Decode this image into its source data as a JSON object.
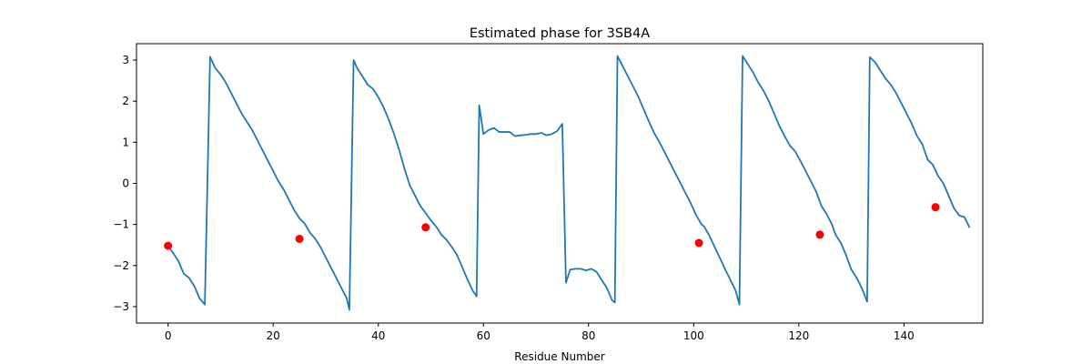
{
  "chart_data": {
    "type": "line",
    "title": "Estimated phase for 3SB4A",
    "xlabel": "Residue Number",
    "ylabel": "",
    "xlim": [
      -6,
      155
    ],
    "ylim": [
      -3.4,
      3.4
    ],
    "xticks": [
      0,
      20,
      40,
      60,
      80,
      100,
      120,
      140
    ],
    "yticks": [
      -3,
      -2,
      -1,
      0,
      1,
      2,
      3
    ],
    "grid": false,
    "legend": "none",
    "colors": {
      "line": "#1f77b4",
      "markers": "#ff0000"
    },
    "series": [
      {
        "style": "line",
        "points": [
          [
            0,
            -1.52
          ],
          [
            1,
            -1.7
          ],
          [
            2,
            -1.9
          ],
          [
            3,
            -2.2
          ],
          [
            4,
            -2.3
          ],
          [
            5,
            -2.5
          ],
          [
            6,
            -2.8
          ],
          [
            7,
            -2.95
          ],
          [
            8,
            3.08
          ],
          [
            9,
            2.8
          ],
          [
            10,
            2.65
          ],
          [
            11,
            2.45
          ],
          [
            12,
            2.2
          ],
          [
            13,
            1.95
          ],
          [
            14,
            1.7
          ],
          [
            15,
            1.5
          ],
          [
            16,
            1.3
          ],
          [
            17,
            1.05
          ],
          [
            18,
            0.8
          ],
          [
            19,
            0.55
          ],
          [
            20,
            0.3
          ],
          [
            21,
            0.05
          ],
          [
            22,
            -0.15
          ],
          [
            23,
            -0.4
          ],
          [
            24,
            -0.65
          ],
          [
            25,
            -0.85
          ],
          [
            26,
            -0.98
          ],
          [
            27,
            -1.2
          ],
          [
            28,
            -1.35
          ],
          [
            29,
            -1.55
          ],
          [
            30,
            -1.8
          ],
          [
            31,
            -2.05
          ],
          [
            32,
            -2.3
          ],
          [
            33,
            -2.55
          ],
          [
            34,
            -2.8
          ],
          [
            34.5,
            -3.08
          ],
          [
            35.3,
            3.0
          ],
          [
            36,
            2.8
          ],
          [
            37,
            2.6
          ],
          [
            38,
            2.4
          ],
          [
            39,
            2.3
          ],
          [
            40,
            2.1
          ],
          [
            41,
            1.85
          ],
          [
            42,
            1.55
          ],
          [
            43,
            1.2
          ],
          [
            44,
            0.8
          ],
          [
            45,
            0.35
          ],
          [
            46,
            -0.05
          ],
          [
            47,
            -0.3
          ],
          [
            48,
            -0.55
          ],
          [
            49,
            -0.72
          ],
          [
            50,
            -0.9
          ],
          [
            51,
            -1.05
          ],
          [
            52,
            -1.25
          ],
          [
            53,
            -1.38
          ],
          [
            54,
            -1.55
          ],
          [
            55,
            -1.75
          ],
          [
            56,
            -2.05
          ],
          [
            57,
            -2.35
          ],
          [
            58,
            -2.62
          ],
          [
            58.7,
            -2.75
          ],
          [
            59.2,
            1.9
          ],
          [
            60,
            1.2
          ],
          [
            61,
            1.3
          ],
          [
            62,
            1.35
          ],
          [
            63,
            1.25
          ],
          [
            64,
            1.25
          ],
          [
            65,
            1.25
          ],
          [
            66,
            1.15
          ],
          [
            67,
            1.17
          ],
          [
            68,
            1.18
          ],
          [
            69,
            1.2
          ],
          [
            70,
            1.2
          ],
          [
            71,
            1.23
          ],
          [
            72,
            1.17
          ],
          [
            73,
            1.2
          ],
          [
            74,
            1.27
          ],
          [
            75,
            1.45
          ],
          [
            75.7,
            -2.42
          ],
          [
            76.5,
            -2.1
          ],
          [
            77.5,
            -2.08
          ],
          [
            78.5,
            -2.08
          ],
          [
            79.5,
            -2.12
          ],
          [
            80.5,
            -2.08
          ],
          [
            81.5,
            -2.15
          ],
          [
            82.5,
            -2.35
          ],
          [
            83.5,
            -2.55
          ],
          [
            84.5,
            -2.85
          ],
          [
            85,
            -2.9
          ],
          [
            85.5,
            3.1
          ],
          [
            86.5,
            2.85
          ],
          [
            87.5,
            2.6
          ],
          [
            88.5,
            2.35
          ],
          [
            89.5,
            2.1
          ],
          [
            90.5,
            1.8
          ],
          [
            91.5,
            1.5
          ],
          [
            92.5,
            1.22
          ],
          [
            93.5,
            1.0
          ],
          [
            94.5,
            0.75
          ],
          [
            95.5,
            0.5
          ],
          [
            96.5,
            0.25
          ],
          [
            97.5,
            0.0
          ],
          [
            98.5,
            -0.25
          ],
          [
            99.5,
            -0.5
          ],
          [
            100.5,
            -0.78
          ],
          [
            101.5,
            -1.0
          ],
          [
            102,
            -1.05
          ],
          [
            103,
            -1.28
          ],
          [
            104,
            -1.55
          ],
          [
            105,
            -1.82
          ],
          [
            106,
            -2.1
          ],
          [
            107,
            -2.35
          ],
          [
            108,
            -2.62
          ],
          [
            108.7,
            -2.95
          ],
          [
            109.3,
            3.1
          ],
          [
            110.3,
            2.9
          ],
          [
            111.3,
            2.7
          ],
          [
            112.3,
            2.45
          ],
          [
            113.3,
            2.25
          ],
          [
            114.3,
            2.0
          ],
          [
            115.3,
            1.7
          ],
          [
            116.3,
            1.4
          ],
          [
            117.3,
            1.15
          ],
          [
            118.3,
            0.92
          ],
          [
            119.3,
            0.78
          ],
          [
            120.3,
            0.55
          ],
          [
            121.3,
            0.3
          ],
          [
            122.3,
            0.05
          ],
          [
            123.3,
            -0.2
          ],
          [
            124.3,
            -0.55
          ],
          [
            125.3,
            -0.75
          ],
          [
            126.3,
            -1.0
          ],
          [
            127,
            -1.25
          ],
          [
            128,
            -1.45
          ],
          [
            129,
            -1.75
          ],
          [
            130,
            -2.1
          ],
          [
            131,
            -2.3
          ],
          [
            132,
            -2.55
          ],
          [
            133,
            -2.88
          ],
          [
            133.5,
            3.07
          ],
          [
            134.5,
            2.95
          ],
          [
            135.5,
            2.75
          ],
          [
            136.5,
            2.55
          ],
          [
            137.5,
            2.4
          ],
          [
            138.5,
            2.2
          ],
          [
            139.5,
            1.95
          ],
          [
            140.5,
            1.7
          ],
          [
            141.5,
            1.45
          ],
          [
            142.5,
            1.15
          ],
          [
            143.5,
            0.95
          ],
          [
            144.5,
            0.58
          ],
          [
            145.5,
            0.45
          ],
          [
            146.5,
            0.18
          ],
          [
            147.5,
            0.0
          ],
          [
            148.5,
            -0.3
          ],
          [
            149.5,
            -0.6
          ],
          [
            150.5,
            -0.78
          ],
          [
            151.5,
            -0.82
          ],
          [
            152.5,
            -1.08
          ]
        ]
      },
      {
        "style": "markers",
        "points": [
          [
            0,
            -1.52
          ],
          [
            25,
            -1.35
          ],
          [
            49,
            -1.07
          ],
          [
            101,
            -1.45
          ],
          [
            124,
            -1.25
          ],
          [
            146,
            -0.58
          ]
        ]
      }
    ]
  }
}
